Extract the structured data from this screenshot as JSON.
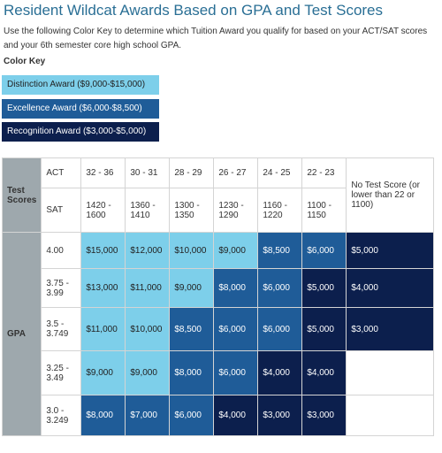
{
  "header": {
    "title": "Resident Wildcat Awards Based on GPA and Test Scores",
    "intro": "Use the following Color Key to determine which Tuition Award you qualify for based on your ACT/SAT scores and your 6th semester core high school GPA.",
    "key_title": "Color Key"
  },
  "key": [
    {
      "label": "Distinction Award ($9,000-$15,000)",
      "color": "#7dcfea"
    },
    {
      "label": "Excellence Award ($6,000-$8,500)",
      "color": "#1f5c98"
    },
    {
      "label": "Recognition Award ($3,000-$5,000)",
      "color": "#0c1f4d"
    }
  ],
  "table": {
    "test_scores_label": "Test Scores",
    "act_label": "ACT",
    "sat_label": "SAT",
    "gpa_label": "GPA",
    "act": [
      "32 - 36",
      "30 - 31",
      "28 - 29",
      "26 - 27",
      "24 - 25",
      "22 - 23"
    ],
    "sat": [
      "1420 - 1600",
      "1360 - 1410",
      "1300 - 1350",
      "1230 - 1290",
      "1160 - 1220",
      "1100 - 1150"
    ],
    "no_score": "No Test Score (or lower than 22 or 1100)",
    "rows": [
      {
        "gpa": "4.00",
        "cells": [
          "$15,000",
          "$12,000",
          "$10,000",
          "$9,000",
          "$8,500",
          "$6,000",
          "$5,000"
        ],
        "colors": [
          "#7dcfea",
          "#7dcfea",
          "#7dcfea",
          "#7dcfea",
          "#1f5c98",
          "#1f5c98",
          "#0c1f4d"
        ]
      },
      {
        "gpa": "3.75 - 3.99",
        "cells": [
          "$13,000",
          "$11,000",
          "$9,000",
          "$8,000",
          "$6,000",
          "$5,000",
          "$4,000"
        ],
        "colors": [
          "#7dcfea",
          "#7dcfea",
          "#7dcfea",
          "#1f5c98",
          "#1f5c98",
          "#0c1f4d",
          "#0c1f4d"
        ]
      },
      {
        "gpa": "3.5 - 3.749",
        "cells": [
          "$11,000",
          "$10,000",
          "$8,500",
          "$6,000",
          "$6,000",
          "$5,000",
          "$3,000"
        ],
        "colors": [
          "#7dcfea",
          "#7dcfea",
          "#1f5c98",
          "#1f5c98",
          "#1f5c98",
          "#0c1f4d",
          "#0c1f4d"
        ]
      },
      {
        "gpa": "3.25 - 3.49",
        "cells": [
          "$9,000",
          "$9,000",
          "$8,000",
          "$6,000",
          "$4,000",
          "$4,000"
        ],
        "colors": [
          "#7dcfea",
          "#7dcfea",
          "#1f5c98",
          "#1f5c98",
          "#0c1f4d",
          "#0c1f4d",
          "#ffffff"
        ]
      },
      {
        "gpa": "3.0 - 3.249",
        "cells": [
          "$8,000",
          "$7,000",
          "$6,000",
          "$4,000",
          "$3,000",
          "$3,000"
        ],
        "colors": [
          "#1f5c98",
          "#1f5c98",
          "#1f5c98",
          "#0c1f4d",
          "#0c1f4d",
          "#0c1f4d",
          "#ffffff"
        ]
      }
    ]
  }
}
